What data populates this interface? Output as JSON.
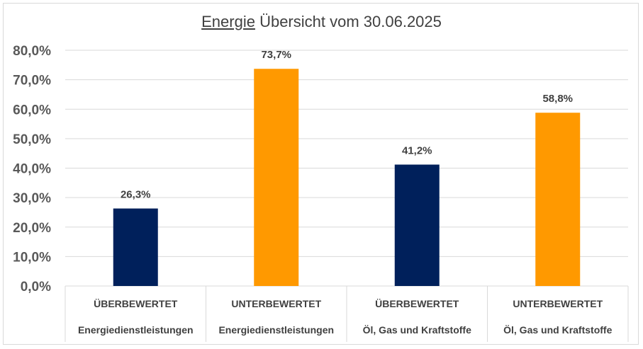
{
  "chart_data": {
    "type": "bar",
    "title_underlined": "Energie",
    "title_rest": " Übersicht vom 30.06.2025",
    "categories": [
      [
        "ÜBERBEWERTET",
        "Energiedienstleistungen"
      ],
      [
        "UNTERBEWERTET",
        "Energiedienstleistungen"
      ],
      [
        "ÜBERBEWERTET",
        "Öl, Gas und Kraftstoffe"
      ],
      [
        "UNTERBEWERTET",
        "Öl, Gas und Kraftstoffe"
      ]
    ],
    "values": [
      26.3,
      73.7,
      41.2,
      58.8
    ],
    "data_labels": [
      "26,3%",
      "73,7%",
      "41,2%",
      "58,8%"
    ],
    "bar_colors": [
      "#00205b",
      "#ff9900",
      "#00205b",
      "#ff9900"
    ],
    "ylim": [
      0,
      80
    ],
    "yticks": [
      0,
      10,
      20,
      30,
      40,
      50,
      60,
      70,
      80
    ],
    "ytick_labels": [
      "0,0%",
      "10,0%",
      "20,0%",
      "30,0%",
      "40,0%",
      "50,0%",
      "60,0%",
      "70,0%",
      "80,0%"
    ],
    "grid": true,
    "legend": "none"
  }
}
